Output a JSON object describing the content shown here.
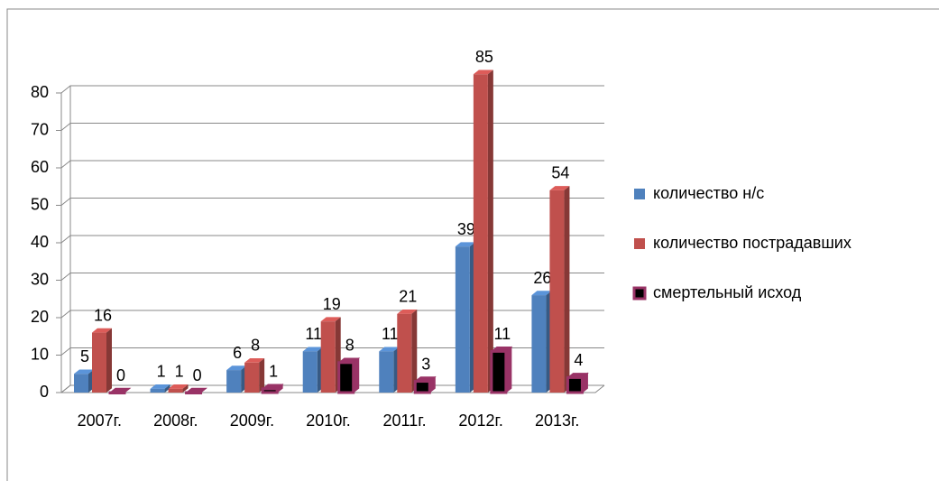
{
  "chart_data": {
    "type": "bar3d",
    "categories": [
      "2007г.",
      "2008г.",
      "2009г.",
      "2010г.",
      "2011г.",
      "2012г.",
      "2013г."
    ],
    "series": [
      {
        "name": "количество н/с",
        "color": "#4f81bd",
        "values": [
          5,
          1,
          6,
          11,
          11,
          39,
          26
        ]
      },
      {
        "name": "количество пострадавших",
        "color": "#c0504d",
        "values": [
          16,
          1,
          8,
          19,
          21,
          85,
          54
        ]
      },
      {
        "name": "смертельный исход",
        "color": "#000000",
        "stroke": "#993366",
        "values": [
          0,
          0,
          1,
          8,
          3,
          11,
          4
        ]
      }
    ],
    "ylim": [
      0,
      80
    ],
    "yticks": [
      0,
      10,
      20,
      30,
      40,
      50,
      60,
      70,
      80
    ],
    "grid": true,
    "legend": "right"
  }
}
